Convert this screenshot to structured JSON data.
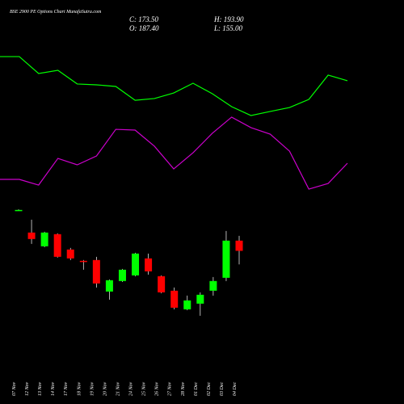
{
  "header": {
    "title": "BSE 2900  PE Options  Chart MunafaSutra.com",
    "close": "C: 173.50",
    "open": "O: 187.40",
    "high": "H: 193.90",
    "low": "L: 155.00"
  },
  "chart_data": [
    {
      "type": "candlestick",
      "categories": [
        "07 Nov",
        "12 Nov",
        "13 Nov",
        "14 Nov",
        "17 Nov",
        "18 Nov",
        "19 Nov",
        "20 Nov",
        "21 Nov",
        "24 Nov",
        "25 Nov",
        "26 Nov",
        "27 Nov",
        "28 Nov",
        "01 Dec",
        "02 Dec",
        "03 Dec",
        "04 Dec"
      ],
      "open": [
        229.2,
        198.4,
        179.7,
        196.2,
        175.3,
        159.9,
        161.0,
        118.1,
        132.4,
        140.1,
        163.2,
        139.0,
        119.2,
        93.9,
        101.6,
        119.2,
        136.8,
        187.4
      ],
      "close": [
        229.2,
        189.6,
        198.4,
        165.4,
        163.2,
        158.8,
        129.1,
        133.5,
        147.8,
        169.8,
        145.6,
        117.0,
        96.1,
        106.0,
        113.7,
        132.4,
        187.4,
        173.5
      ],
      "high": [
        229.9,
        216.0,
        199.5,
        197.3,
        177.5,
        161.0,
        165.4,
        134.6,
        148.9,
        170.9,
        169.8,
        140.1,
        123.6,
        112.6,
        117.0,
        137.9,
        200.6,
        193.9
      ],
      "low": [
        228.6,
        183.0,
        178.6,
        164.3,
        161.0,
        147.8,
        123.6,
        107.1,
        131.3,
        139.0,
        141.2,
        115.9,
        93.9,
        92.8,
        85.1,
        112.6,
        132.4,
        155.0
      ],
      "up_color": "#00ff00",
      "down_color": "#ff0000",
      "ylim": [
        75,
        240
      ]
    },
    {
      "type": "line",
      "categories": [
        null,
        null,
        null,
        null,
        null,
        null,
        null,
        null,
        null,
        null,
        null,
        null,
        null,
        null,
        null,
        null,
        null,
        null,
        null
      ],
      "ylim": [
        0,
        100
      ],
      "series": [
        {
          "color": "#00ff00",
          "values": [
            94.4,
            94.4,
            82.8,
            85.0,
            75.6,
            75.0,
            73.9,
            64.4,
            65.6,
            69.4,
            76.1,
            68.9,
            60.0,
            53.9,
            56.7,
            59.4,
            65.0,
            81.7,
            77.8
          ]
        },
        {
          "color": "#cc00cc",
          "values": [
            10.0,
            10.0,
            6.1,
            24.4,
            20.0,
            26.1,
            44.4,
            43.9,
            32.8,
            17.2,
            28.3,
            41.7,
            52.8,
            45.6,
            41.1,
            29.4,
            3.3,
            7.2,
            21.1
          ]
        }
      ]
    }
  ]
}
